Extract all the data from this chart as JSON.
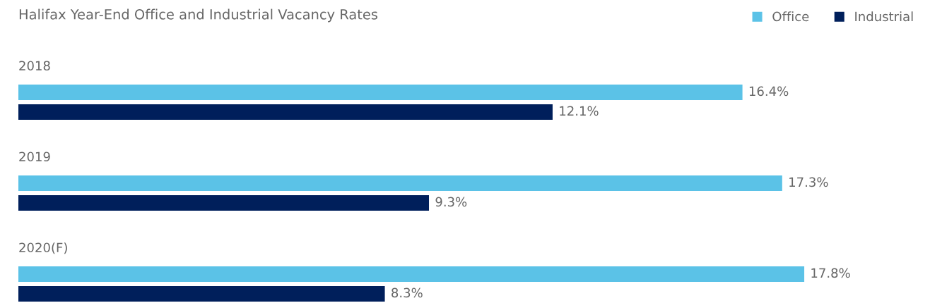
{
  "chart_data": {
    "type": "bar",
    "orientation": "horizontal",
    "title": "Halifax Year-End Office and Industrial Vacancy Rates",
    "categories": [
      "2018",
      "2019",
      "2020(F)"
    ],
    "series": [
      {
        "name": "Office",
        "color": "#5bc2e7",
        "values": [
          16.4,
          17.3,
          17.8
        ],
        "value_labels": [
          "16.4%",
          "17.3%",
          "17.8%"
        ]
      },
      {
        "name": "Industrial",
        "color": "#001f5b",
        "values": [
          12.1,
          9.3,
          8.3
        ],
        "value_labels": [
          "12.1%",
          "9.3%",
          "8.3%"
        ]
      }
    ],
    "legend": "top right"
  }
}
